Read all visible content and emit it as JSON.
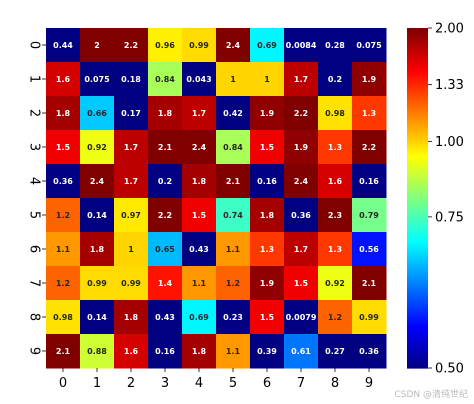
{
  "chart_data": {
    "type": "heatmap",
    "x_ticks": [
      "0",
      "1",
      "2",
      "3",
      "4",
      "5",
      "6",
      "7",
      "8",
      "9"
    ],
    "y_ticks": [
      "0",
      "1",
      "2",
      "3",
      "4",
      "5",
      "6",
      "7",
      "8",
      "9"
    ],
    "values": [
      [
        0.44,
        2,
        2.2,
        0.96,
        0.99,
        2.4,
        0.69,
        0.0084,
        0.28,
        0.075
      ],
      [
        1.6,
        0.075,
        0.18,
        0.84,
        0.043,
        1,
        1,
        1.7,
        0.2,
        1.9
      ],
      [
        1.8,
        0.66,
        0.17,
        1.8,
        1.7,
        0.42,
        1.9,
        2.2,
        0.98,
        1.3
      ],
      [
        1.5,
        0.92,
        1.7,
        2.1,
        2.4,
        0.84,
        1.5,
        1.9,
        1.3,
        2.2
      ],
      [
        0.36,
        2.4,
        1.7,
        0.2,
        1.8,
        2.1,
        0.16,
        2.4,
        1.6,
        0.16
      ],
      [
        1.2,
        0.14,
        0.97,
        2.2,
        1.5,
        0.74,
        1.8,
        0.36,
        2.3,
        0.79
      ],
      [
        1.1,
        1.8,
        1,
        0.65,
        0.43,
        1.1,
        1.3,
        1.7,
        1.3,
        0.56
      ],
      [
        1.2,
        0.99,
        0.99,
        1.4,
        1.1,
        1.2,
        1.9,
        1.5,
        0.92,
        2.1
      ],
      [
        0.98,
        0.14,
        1.8,
        0.43,
        0.69,
        0.23,
        1.5,
        0.0079,
        1.2,
        0.99
      ],
      [
        2.1,
        0.88,
        1.6,
        0.16,
        1.8,
        1.1,
        0.39,
        0.61,
        0.27,
        0.36
      ]
    ],
    "colormap": "jet",
    "vmin": 0.5,
    "vmax": 2.0,
    "colorbar_ticks": [
      "0.50",
      "0.75",
      "1.00",
      "1.33",
      "2.00"
    ],
    "colorbar_tick_values": [
      0.5,
      0.75,
      1.0,
      1.3333,
      2.0
    ],
    "colorbar_scale": "reciprocal",
    "annotated": true,
    "title": "",
    "xlabel": "",
    "ylabel": ""
  },
  "watermark": "CSDN @清纯世纪"
}
